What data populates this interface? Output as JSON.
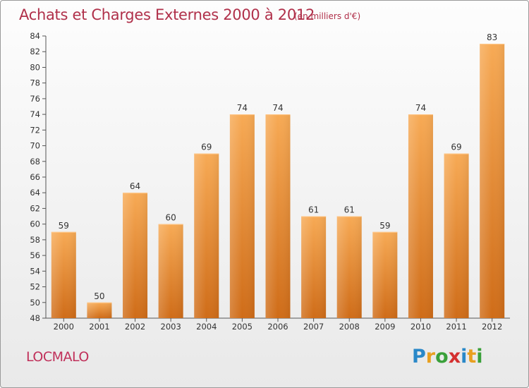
{
  "title": "Achats et Charges Externes 2000 à 2012",
  "unit_label": "(en milliers d'€)",
  "commune": "LOCMALO",
  "logo": {
    "letters": [
      "P",
      "r",
      "o",
      "x",
      "i",
      "t",
      "i"
    ],
    "colors": [
      "#2a88c8",
      "#e8a020",
      "#3aa03a",
      "#d43030",
      "#2a88c8",
      "#e8a020",
      "#3aa03a"
    ]
  },
  "colors": {
    "accent": "#b0304a",
    "bar_light": "#f5a552",
    "bar_dark": "#d0701a"
  },
  "chart_data": {
    "type": "bar",
    "title": "Achats et Charges Externes 2000 à 2012",
    "subtitle": "(en milliers d'€)",
    "xlabel": "",
    "ylabel": "",
    "categories": [
      "2000",
      "2001",
      "2002",
      "2003",
      "2004",
      "2005",
      "2006",
      "2007",
      "2008",
      "2009",
      "2010",
      "2011",
      "2012"
    ],
    "values": [
      59,
      50,
      64,
      60,
      69,
      74,
      74,
      61,
      61,
      59,
      74,
      69,
      83
    ],
    "ylim": [
      48,
      84
    ],
    "yticks": [
      48,
      50,
      52,
      54,
      56,
      58,
      60,
      62,
      64,
      66,
      68,
      70,
      72,
      74,
      76,
      78,
      80,
      82,
      84
    ],
    "grid": false,
    "legend": "none"
  }
}
